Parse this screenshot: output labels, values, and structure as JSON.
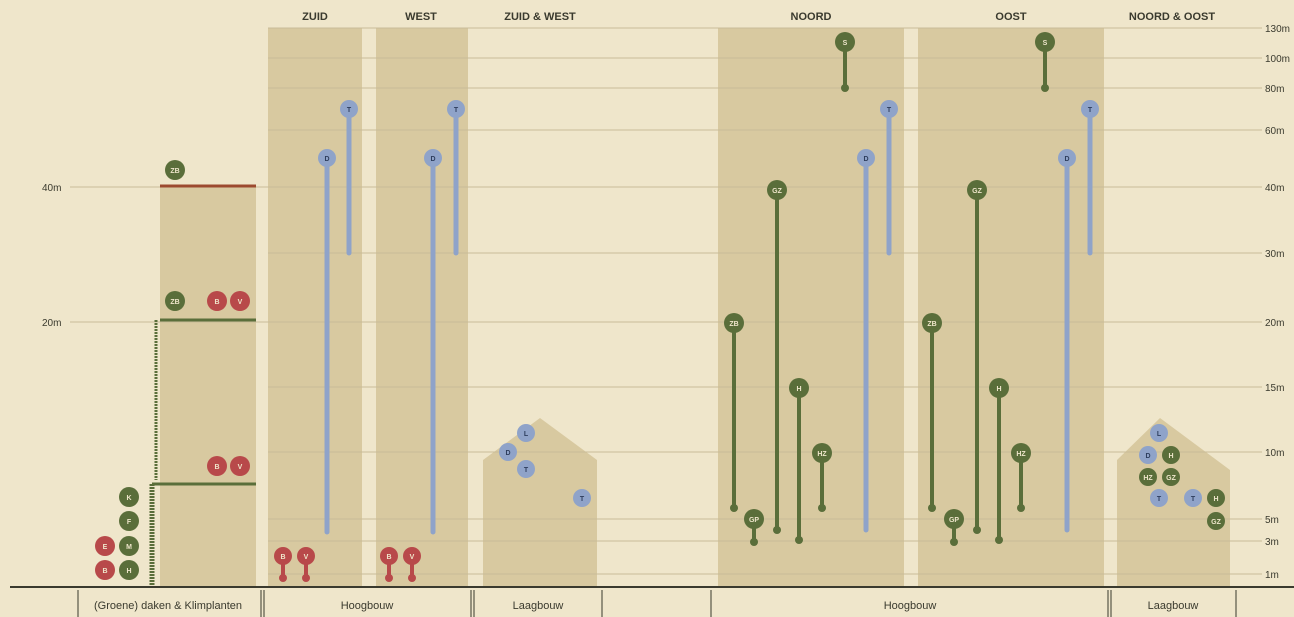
{
  "headers": {
    "zuid": "ZUID",
    "west": "WEST",
    "zuid_west": "ZUID & WEST",
    "noord": "NOORD",
    "oost": "OOST",
    "noord_oost": "NOORD & OOST"
  },
  "left_axis": [
    "40m",
    "20m"
  ],
  "right_axis": [
    "130m",
    "100m",
    "80m",
    "60m",
    "40m",
    "30m",
    "20m",
    "15m",
    "10m",
    "5m",
    "3m",
    "1m"
  ],
  "footer": {
    "daken": "(Groene) daken & Klimplanten",
    "hoogbouw_1": "Hoogbouw",
    "laagbouw_1": "Laagbouw",
    "hoogbouw_2": "Hoogbouw",
    "laagbouw_2": "Laagbouw"
  },
  "colors": {
    "background": "#efe6cb",
    "zone": "#d8c9a0",
    "green": "#5a6e3a",
    "blue": "#8fa3c9",
    "red": "#b8494a",
    "roof_line": "#9c4a2f"
  },
  "markers": {
    "zb": "ZB",
    "b": "B",
    "v": "V",
    "k": "K",
    "f": "F",
    "e": "E",
    "m": "M",
    "h": "H",
    "t": "T",
    "d": "D",
    "l": "L",
    "s": "S",
    "gz": "GZ",
    "hz": "HZ",
    "gp": "GP"
  }
}
